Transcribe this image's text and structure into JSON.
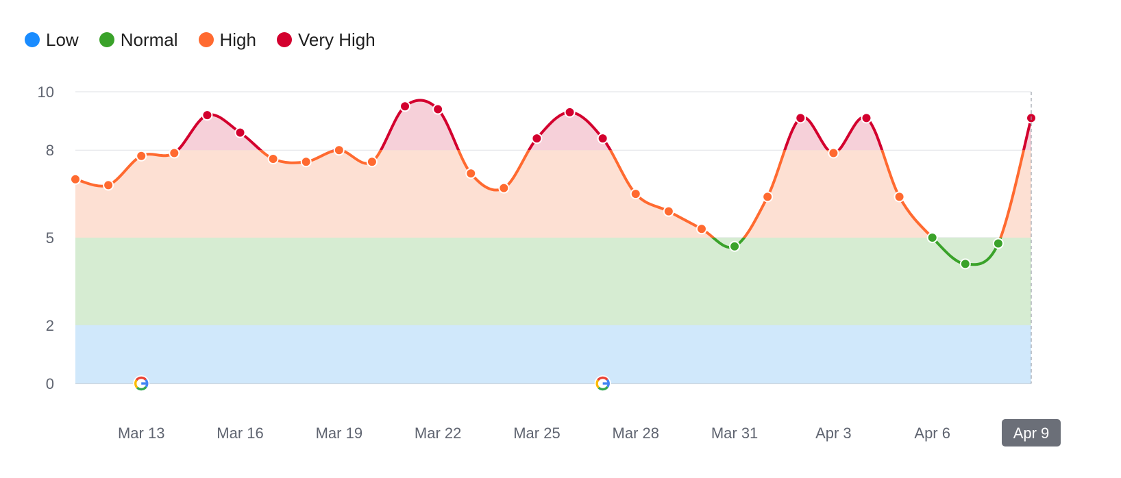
{
  "legend": [
    {
      "label": "Low",
      "color": "#1a8cff"
    },
    {
      "label": "Normal",
      "color": "#3aa22a"
    },
    {
      "label": "High",
      "color": "#ff6a30"
    },
    {
      "label": "Very High",
      "color": "#d3002e"
    }
  ],
  "chart_data": {
    "type": "line",
    "title": "",
    "xlabel": "",
    "ylabel": "",
    "ylim": [
      0,
      10
    ],
    "yticks": [
      0,
      2,
      5,
      8,
      10
    ],
    "grid": true,
    "legend_position": "top-left",
    "x": [
      "Mar 11",
      "Mar 12",
      "Mar 13",
      "Mar 14",
      "Mar 15",
      "Mar 16",
      "Mar 17",
      "Mar 18",
      "Mar 19",
      "Mar 20",
      "Mar 21",
      "Mar 22",
      "Mar 23",
      "Mar 24",
      "Mar 25",
      "Mar 26",
      "Mar 27",
      "Mar 28",
      "Mar 29",
      "Mar 30",
      "Mar 31",
      "Apr 1",
      "Apr 2",
      "Apr 3",
      "Apr 4",
      "Apr 5",
      "Apr 6",
      "Apr 7",
      "Apr 8",
      "Apr 9"
    ],
    "xtick_labels": [
      "Mar 13",
      "Mar 16",
      "Mar 19",
      "Mar 22",
      "Mar 25",
      "Mar 28",
      "Mar 31",
      "Apr 3",
      "Apr 6"
    ],
    "highlighted_x": "Apr 9",
    "values": [
      7.0,
      6.8,
      7.8,
      7.9,
      9.2,
      8.6,
      7.7,
      7.6,
      8.0,
      7.6,
      9.5,
      9.4,
      7.2,
      6.7,
      8.4,
      9.3,
      8.4,
      6.5,
      5.9,
      5.3,
      4.7,
      6.4,
      9.1,
      7.9,
      9.1,
      6.4,
      5.0,
      4.1,
      4.8,
      9.1
    ],
    "bands": [
      {
        "name": "Low",
        "from": 0,
        "to": 2,
        "color": "#d0e8fb"
      },
      {
        "name": "Normal",
        "from": 2,
        "to": 5,
        "color": "#d6ecd2"
      },
      {
        "name": "High",
        "from": 5,
        "to": 8,
        "color": "#fde0d3"
      },
      {
        "name": "Very High",
        "from": 8,
        "to": 10,
        "color": "#f6d0d9"
      }
    ],
    "annotations": [
      {
        "x": "Mar 13",
        "icon": "google-icon"
      },
      {
        "x": "Mar 27",
        "icon": "google-icon"
      }
    ]
  }
}
